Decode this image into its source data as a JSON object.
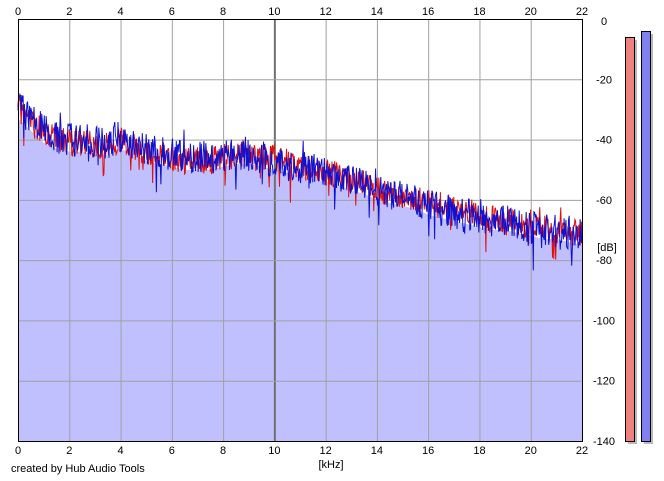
{
  "credit": "created by Hub Audio Tools",
  "chart_data": {
    "type": "area",
    "xlabel": "[kHz]",
    "ylabel": "[dB]",
    "xlim": [
      0,
      22
    ],
    "ylim": [
      -140,
      0
    ],
    "x_ticks": [
      0,
      2,
      4,
      6,
      8,
      10,
      12,
      14,
      16,
      18,
      20,
      22
    ],
    "y_ticks": [
      0,
      -20,
      -40,
      -60,
      -80,
      -100,
      -120,
      -140
    ],
    "grid": true,
    "x_axis_position": "top and bottom",
    "y_axis_position": "right",
    "series": [
      {
        "color": "#e01010",
        "x": [
          0.0,
          0.5,
          1.0,
          1.5,
          2.0,
          2.5,
          3.0,
          3.5,
          4.0,
          4.5,
          5.0,
          5.5,
          6.0,
          6.5,
          7.0,
          7.5,
          8.0,
          8.5,
          9.0,
          9.5,
          10.0,
          10.5,
          11.0,
          11.5,
          12.0,
          12.5,
          13.0,
          13.5,
          14.0,
          14.5,
          15.0,
          15.5,
          16.0,
          16.5,
          17.0,
          17.5,
          18.0,
          18.5,
          19.0,
          19.5,
          20.0,
          20.5,
          21.0,
          21.5,
          22.0
        ],
        "values": [
          -30,
          -34,
          -38,
          -40,
          -41,
          -41,
          -42,
          -42,
          -40,
          -42,
          -44,
          -45,
          -46,
          -47,
          -47,
          -47,
          -46,
          -45,
          -44,
          -46,
          -46,
          -48,
          -49,
          -50,
          -51,
          -52,
          -53,
          -55,
          -56,
          -58,
          -59,
          -60,
          -61,
          -62,
          -63,
          -64,
          -65,
          -66,
          -67,
          -68,
          -69,
          -69,
          -70,
          -71,
          -71
        ]
      },
      {
        "color": "#1010d0",
        "x": [
          0.0,
          0.5,
          1.0,
          1.5,
          2.0,
          2.5,
          3.0,
          3.5,
          4.0,
          4.5,
          5.0,
          5.5,
          6.0,
          6.5,
          7.0,
          7.5,
          8.0,
          8.5,
          9.0,
          9.5,
          10.0,
          10.5,
          11.0,
          11.5,
          12.0,
          12.5,
          13.0,
          13.5,
          14.0,
          14.5,
          15.0,
          15.5,
          16.0,
          16.5,
          17.0,
          17.5,
          18.0,
          18.5,
          19.0,
          19.5,
          20.0,
          20.5,
          21.0,
          21.5,
          22.0
        ],
        "values": [
          -29,
          -33,
          -37,
          -39,
          -40,
          -40,
          -41,
          -41,
          -39,
          -41,
          -43,
          -44,
          -45,
          -46,
          -46,
          -46,
          -45,
          -45,
          -45,
          -46,
          -47,
          -48,
          -49,
          -50,
          -51,
          -52,
          -54,
          -55,
          -57,
          -58,
          -59,
          -60,
          -62,
          -63,
          -64,
          -65,
          -66,
          -67,
          -67,
          -68,
          -69,
          -70,
          -70,
          -71,
          -72
        ]
      }
    ],
    "level_meters": [
      {
        "color": "#f08080",
        "value": -5
      },
      {
        "color": "#8080f0",
        "value": -3
      }
    ],
    "colors": {
      "fill": "#c0c0ff",
      "grid": "#a0a0a0",
      "axis": "#000000"
    }
  }
}
